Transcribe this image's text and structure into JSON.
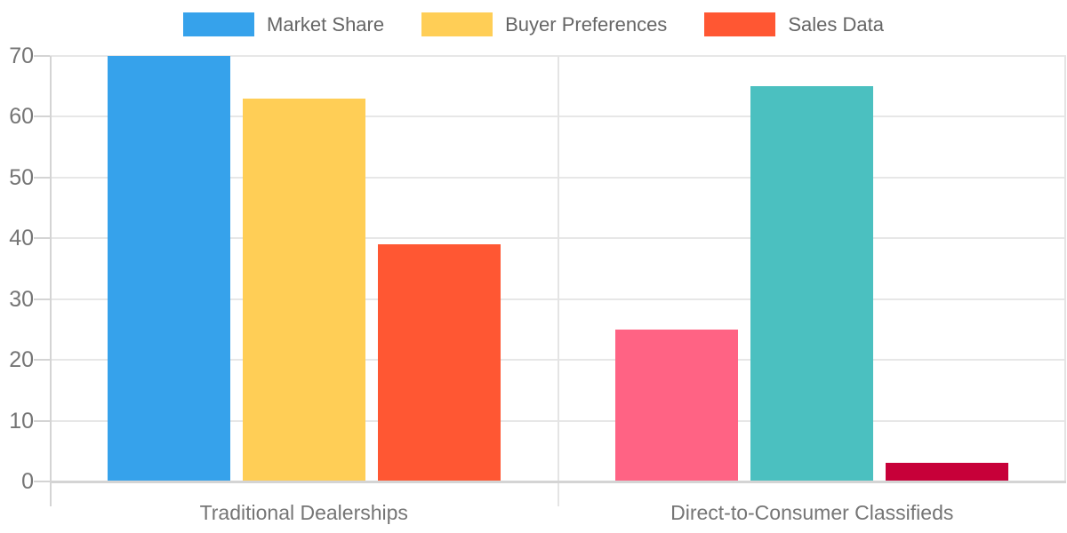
{
  "chart_data": {
    "type": "bar",
    "title": "",
    "xlabel": "",
    "ylabel": "",
    "categories": [
      "Traditional Dealerships",
      "Direct-to-Consumer Classifieds"
    ],
    "series": [
      {
        "name": "Market Share",
        "legend_color": "#36A2EB",
        "values": [
          70,
          25
        ],
        "bar_colors": [
          "#36A2EB",
          "#FF6384"
        ]
      },
      {
        "name": "Buyer Preferences",
        "legend_color": "#FFCE56",
        "values": [
          63,
          65
        ],
        "bar_colors": [
          "#FFCE56",
          "#4BC0C0"
        ]
      },
      {
        "name": "Sales Data",
        "legend_color": "#FF5733",
        "values": [
          39,
          3
        ],
        "bar_colors": [
          "#FF5733",
          "#C70039"
        ]
      }
    ],
    "y_ticks": [
      0,
      10,
      20,
      30,
      40,
      50,
      60,
      70
    ],
    "ylim": [
      0,
      70
    ],
    "grid": true,
    "legend_position": "top"
  }
}
